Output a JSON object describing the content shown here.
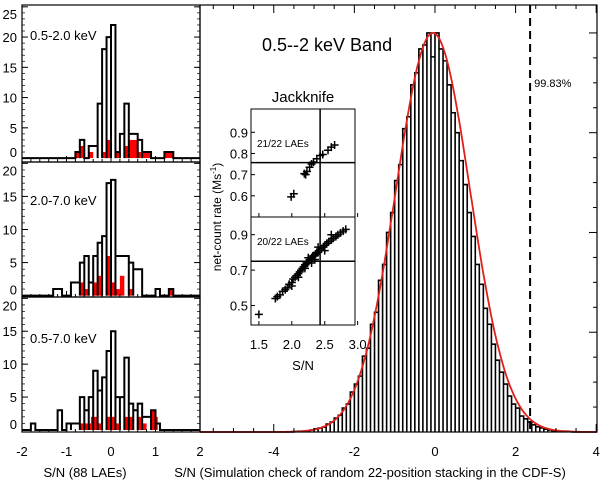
{
  "colors": {
    "outline": "#000000",
    "red": "#ff0000",
    "fit": "#e0201a"
  },
  "bottom_labels": {
    "left": "S/N (88 LAEs)",
    "right": "S/N (Simulation check of random 22-position stacking in the CDF-S)"
  },
  "chart_data": [
    {
      "type": "bar",
      "label": "0.5-2.0 keV",
      "xlim": [
        -2,
        2
      ],
      "ylim": [
        -0.65,
        25.3
      ],
      "yticks": [
        0,
        5,
        10,
        15,
        20,
        25
      ],
      "ytick_labels": [
        "0",
        "5",
        "10",
        "15",
        "20",
        "25"
      ],
      "all": [
        [
          -0.8,
          -0.7,
          1
        ],
        [
          -0.7,
          -0.6,
          3
        ],
        [
          -0.6,
          -0.5,
          0
        ],
        [
          -0.5,
          -0.3,
          2
        ],
        [
          -0.3,
          -0.2,
          9
        ],
        [
          -0.2,
          -0.1,
          18
        ],
        [
          -0.1,
          0.0,
          20
        ],
        [
          0.0,
          0.1,
          22
        ],
        [
          0.1,
          0.2,
          1
        ],
        [
          0.2,
          0.3,
          4
        ],
        [
          0.3,
          0.4,
          9
        ],
        [
          0.4,
          0.6,
          4
        ],
        [
          0.6,
          0.7,
          3
        ],
        [
          0.7,
          0.9,
          1
        ],
        [
          0.9,
          1.2,
          0
        ],
        [
          1.2,
          1.4,
          1
        ]
      ],
      "red": [
        [
          -0.8,
          -0.7,
          1
        ],
        [
          -0.7,
          -0.6,
          2
        ],
        [
          -0.5,
          -0.4,
          1
        ],
        [
          -0.2,
          -0.1,
          1
        ],
        [
          -0.1,
          0.0,
          3
        ],
        [
          0.1,
          0.2,
          1
        ],
        [
          0.3,
          0.4,
          2
        ],
        [
          0.4,
          0.6,
          3
        ],
        [
          0.6,
          0.7,
          1
        ],
        [
          0.7,
          0.9,
          1
        ],
        [
          1.2,
          1.4,
          1
        ]
      ]
    },
    {
      "type": "bar",
      "label": "2.0-7.0 keV",
      "xlim": [
        -2,
        2
      ],
      "ylim": [
        -0.2,
        20.2
      ],
      "yticks": [
        0,
        5,
        10,
        15,
        20
      ],
      "ytick_labels": [
        "0",
        "5",
        "10",
        "15",
        "20"
      ],
      "all": [
        [
          -1.3,
          -1.1,
          1
        ],
        [
          -1.1,
          -0.9,
          0
        ],
        [
          -0.9,
          -0.7,
          2
        ],
        [
          -0.7,
          -0.6,
          5
        ],
        [
          -0.6,
          -0.5,
          6
        ],
        [
          -0.5,
          -0.4,
          2
        ],
        [
          -0.4,
          -0.3,
          6
        ],
        [
          -0.3,
          -0.2,
          8
        ],
        [
          -0.2,
          -0.1,
          9
        ],
        [
          -0.1,
          0.0,
          17
        ],
        [
          0.0,
          0.1,
          17.5
        ],
        [
          0.1,
          0.4,
          6
        ],
        [
          0.4,
          0.5,
          5
        ],
        [
          0.5,
          0.7,
          4
        ],
        [
          0.7,
          1.0,
          0
        ],
        [
          1.0,
          1.1,
          1
        ],
        [
          1.1,
          1.3,
          0
        ],
        [
          1.3,
          1.4,
          1
        ]
      ],
      "red": [
        [
          -0.7,
          -0.6,
          2
        ],
        [
          -0.6,
          -0.5,
          1
        ],
        [
          -0.4,
          -0.3,
          2
        ],
        [
          -0.3,
          -0.2,
          3
        ],
        [
          -0.1,
          0.0,
          6
        ],
        [
          0.0,
          0.1,
          2
        ],
        [
          0.1,
          0.2,
          1
        ],
        [
          0.2,
          0.3,
          3
        ],
        [
          0.4,
          0.5,
          1
        ],
        [
          1.3,
          1.4,
          1
        ]
      ]
    },
    {
      "type": "bar",
      "label": "0.5-7.0 keV",
      "xlim": [
        -2,
        2
      ],
      "ylim": [
        -0.3,
        20.2
      ],
      "yticks": [
        0,
        5,
        10,
        15,
        20
      ],
      "ytick_labels": [
        "0",
        "5",
        "10",
        "15",
        "20"
      ],
      "all": [
        [
          -1.8,
          -1.7,
          1
        ],
        [
          -1.2,
          -1.1,
          3
        ],
        [
          -1.1,
          -1.0,
          0
        ],
        [
          -1.0,
          -0.9,
          1
        ],
        [
          -0.9,
          -0.7,
          1
        ],
        [
          -0.7,
          -0.6,
          5
        ],
        [
          -0.6,
          -0.5,
          3
        ],
        [
          -0.5,
          -0.4,
          5
        ],
        [
          -0.4,
          -0.3,
          9
        ],
        [
          -0.3,
          -0.2,
          6
        ],
        [
          -0.2,
          -0.1,
          8
        ],
        [
          -0.1,
          0.0,
          12
        ],
        [
          0.0,
          0.1,
          15
        ],
        [
          0.1,
          0.2,
          5
        ],
        [
          0.2,
          0.3,
          5
        ],
        [
          0.3,
          0.4,
          11
        ],
        [
          0.4,
          0.5,
          4
        ],
        [
          0.5,
          0.6,
          3
        ],
        [
          0.6,
          0.7,
          4
        ],
        [
          0.7,
          0.9,
          2
        ],
        [
          0.9,
          1.0,
          3
        ],
        [
          1.0,
          1.1,
          1
        ]
      ],
      "red": [
        [
          -0.7,
          -0.45,
          1
        ],
        [
          -0.45,
          -0.3,
          2
        ],
        [
          -0.3,
          -0.2,
          1
        ],
        [
          -0.1,
          0.1,
          2
        ],
        [
          0.1,
          0.2,
          1
        ],
        [
          0.3,
          0.5,
          2
        ],
        [
          0.6,
          0.7,
          2
        ],
        [
          0.7,
          0.8,
          1
        ],
        [
          0.9,
          1.0,
          3
        ],
        [
          1.0,
          1.05,
          2
        ]
      ]
    },
    {
      "type": "bar",
      "title": "0.5--2 keV Band",
      "xlim": [
        -5.83,
        4.02
      ],
      "ylim": [
        0,
        1.07
      ],
      "xticks": [
        -4,
        -2,
        0,
        2,
        4
      ],
      "xtick_labels": [
        "-4",
        "-2",
        "0",
        "2",
        "4"
      ],
      "bin_start": -3.5,
      "bin_width": 0.1,
      "values": [
        0.001,
        0.002,
        0.002,
        0.003,
        0.005,
        0.008,
        0.01,
        0.012,
        0.02,
        0.025,
        0.035,
        0.042,
        0.06,
        0.07,
        0.1,
        0.12,
        0.14,
        0.19,
        0.21,
        0.27,
        0.3,
        0.38,
        0.42,
        0.5,
        0.55,
        0.63,
        0.67,
        0.76,
        0.79,
        0.87,
        0.9,
        0.96,
        0.97,
        1.0,
        0.94,
        1.0,
        0.96,
        0.93,
        0.87,
        0.8,
        0.75,
        0.68,
        0.62,
        0.55,
        0.49,
        0.42,
        0.37,
        0.31,
        0.27,
        0.22,
        0.18,
        0.15,
        0.12,
        0.09,
        0.07,
        0.06,
        0.04,
        0.033,
        0.025,
        0.018,
        0.013,
        0.01,
        0.007,
        0.005,
        0.003,
        0.003,
        0.002,
        0.002,
        0.001
      ],
      "fit": {
        "type": "gaussian",
        "mean": -0.05,
        "sigma": 0.92,
        "amplitude": 1.0
      },
      "threshold": {
        "x": 2.36,
        "label": "99.83%"
      }
    },
    {
      "type": "scatter",
      "title": "Jackknife",
      "xlabel": "S/N",
      "ylabel": "net-count rate (Ms",
      "ylabel_sup": "-1",
      "ylabel_close": ")",
      "xlim": [
        1.38,
        2.96
      ],
      "xticks": [
        1.5,
        2.0,
        2.5,
        3.0
      ],
      "xtick_labels": [
        "1.5",
        "2.0",
        "2.5",
        "3.0"
      ],
      "vline": 2.43,
      "panels": [
        {
          "label": "21/22 LAEs",
          "ylim": [
            0.5,
            1.01
          ],
          "yticks": [
            0.6,
            0.7,
            0.8,
            0.9
          ],
          "ytick_labels": [
            "0.6",
            "0.7",
            "0.8",
            "0.9"
          ],
          "hline": 0.757,
          "points": [
            [
              1.99,
              0.595
            ],
            [
              2.03,
              0.61
            ],
            [
              2.19,
              0.705
            ],
            [
              2.21,
              0.7
            ],
            [
              2.23,
              0.715
            ],
            [
              2.27,
              0.735
            ],
            [
              2.3,
              0.75
            ],
            [
              2.33,
              0.76
            ],
            [
              2.38,
              0.775
            ],
            [
              2.43,
              0.79
            ],
            [
              2.47,
              0.795
            ],
            [
              2.55,
              0.815
            ],
            [
              2.6,
              0.83
            ],
            [
              2.65,
              0.84
            ]
          ]
        },
        {
          "label": "20/22 LAEs",
          "ylim": [
            0.39,
            1.0
          ],
          "yticks": [
            0.5,
            0.7,
            0.9
          ],
          "ytick_labels": [
            "0.5",
            "0.7",
            "0.9"
          ],
          "hline": 0.75,
          "points": [
            [
              1.5,
              0.45
            ],
            [
              1.75,
              0.54
            ],
            [
              1.78,
              0.55
            ],
            [
              1.82,
              0.56
            ],
            [
              1.86,
              0.58
            ],
            [
              1.9,
              0.59
            ],
            [
              1.93,
              0.6
            ],
            [
              1.96,
              0.62
            ],
            [
              2.0,
              0.63
            ],
            [
              2.02,
              0.65
            ],
            [
              2.05,
              0.66
            ],
            [
              2.08,
              0.67
            ],
            [
              2.1,
              0.68
            ],
            [
              2.12,
              0.69
            ],
            [
              2.14,
              0.7
            ],
            [
              2.16,
              0.71
            ],
            [
              2.18,
              0.72
            ],
            [
              2.2,
              0.73
            ],
            [
              2.22,
              0.74
            ],
            [
              2.24,
              0.74
            ],
            [
              2.26,
              0.75
            ],
            [
              2.28,
              0.76
            ],
            [
              2.3,
              0.77
            ],
            [
              2.32,
              0.78
            ],
            [
              2.34,
              0.78
            ],
            [
              2.36,
              0.79
            ],
            [
              2.38,
              0.8
            ],
            [
              2.4,
              0.8
            ],
            [
              2.42,
              0.81
            ],
            [
              2.45,
              0.82
            ],
            [
              2.48,
              0.83
            ],
            [
              2.5,
              0.84
            ],
            [
              2.53,
              0.85
            ],
            [
              2.56,
              0.86
            ],
            [
              2.6,
              0.87
            ],
            [
              2.63,
              0.88
            ],
            [
              2.67,
              0.89
            ],
            [
              2.7,
              0.9
            ],
            [
              2.74,
              0.91
            ],
            [
              2.78,
              0.92
            ],
            [
              2.82,
              0.93
            ],
            [
              2.2,
              0.71
            ],
            [
              2.25,
              0.77
            ],
            [
              2.35,
              0.76
            ],
            [
              2.4,
              0.83
            ],
            [
              2.1,
              0.66
            ],
            [
              2.0,
              0.61
            ],
            [
              2.3,
              0.74
            ],
            [
              2.5,
              0.81
            ],
            [
              2.6,
              0.9
            ]
          ]
        }
      ]
    }
  ]
}
